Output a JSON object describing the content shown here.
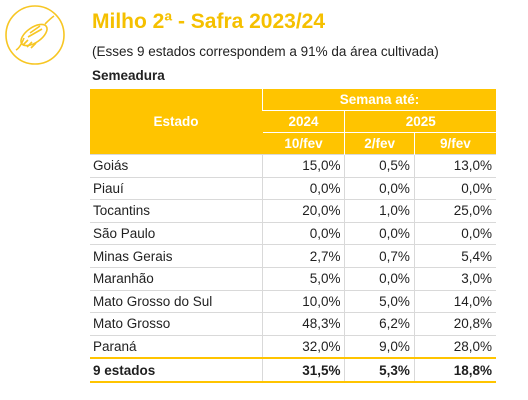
{
  "header": {
    "title": "Milho 2ª - Safra 2023/24",
    "subtitle": "(Esses 9 estados correspondem a 91% da área cultivada)",
    "section": "Semeadura"
  },
  "table": {
    "col_estado": "Estado",
    "col_semana": "Semana até:",
    "year_2024": "2024",
    "year_2025": "2025",
    "date_1": "10/fev",
    "date_2": "2/fev",
    "date_3": "9/fev",
    "rows": [
      {
        "estado": "Goiás",
        "v1": "15,0%",
        "v2": "0,5%",
        "v3": "13,0%"
      },
      {
        "estado": "Piauí",
        "v1": "0,0%",
        "v2": "0,0%",
        "v3": "0,0%"
      },
      {
        "estado": "Tocantins",
        "v1": "20,0%",
        "v2": "1,0%",
        "v3": "25,0%"
      },
      {
        "estado": "São Paulo",
        "v1": "0,0%",
        "v2": "0,0%",
        "v3": "0,0%"
      },
      {
        "estado": "Minas Gerais",
        "v1": "2,7%",
        "v2": "0,7%",
        "v3": "5,4%"
      },
      {
        "estado": "Maranhão",
        "v1": "5,0%",
        "v2": "0,0%",
        "v3": "3,0%"
      },
      {
        "estado": "Mato Grosso do Sul",
        "v1": "10,0%",
        "v2": "5,0%",
        "v3": "14,0%"
      },
      {
        "estado": "Mato Grosso",
        "v1": "48,3%",
        "v2": "6,2%",
        "v3": "20,8%"
      },
      {
        "estado": "Paraná",
        "v1": "32,0%",
        "v2": "9,0%",
        "v3": "28,0%"
      }
    ],
    "total": {
      "estado": "9 estados",
      "v1": "31,5%",
      "v2": "5,3%",
      "v3": "18,8%"
    }
  },
  "colors": {
    "accent": "#ffc400",
    "title": "#f5c000",
    "grid": "#d9d9d9"
  },
  "icons": {
    "logo": "corn-icon"
  }
}
